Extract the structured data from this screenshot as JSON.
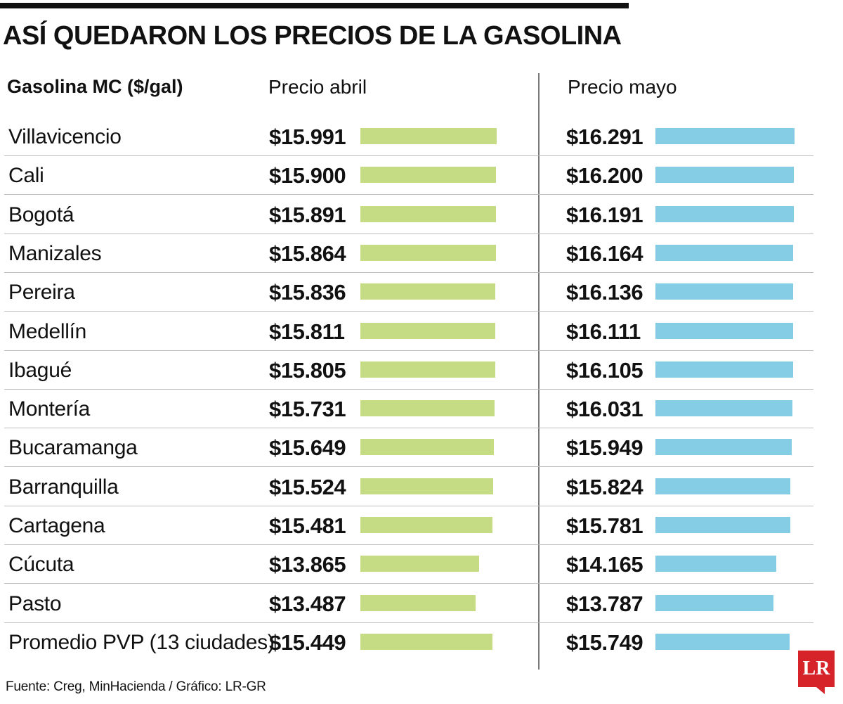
{
  "title": "ASÍ QUEDARON LOS PRECIOS DE LA GASOLINA",
  "footer": "Fuente: Creg, MinHacienda / Gráfico: LR-GR",
  "logo": "LR",
  "colors": {
    "april": "#c5db84",
    "may": "#84cde4"
  },
  "chart_data": {
    "type": "bar",
    "orientation": "horizontal",
    "title": "ASÍ QUEDARON LOS PRECIOS DE LA GASOLINA",
    "row_header": "Gasolina MC ($/gal)",
    "categories": [
      "Villavicencio",
      "Cali",
      "Bogotá",
      "Manizales",
      "Pereira",
      "Medellín",
      "Ibagué",
      "Montería",
      "Bucaramanga",
      "Barranquilla",
      "Cartagena",
      "Cúcuta",
      "Pasto",
      "Promedio PVP (13 ciudades)"
    ],
    "series": [
      {
        "name": "Precio abril",
        "labels": [
          "$15.991",
          "$15.900",
          "$15.891",
          "$15.864",
          "$15.836",
          "$15.811",
          "$15.805",
          "$15.731",
          "$15.649",
          "$15.524",
          "$15.481",
          "$13.865",
          "$13.487",
          "$15.449"
        ],
        "values": [
          15991,
          15900,
          15891,
          15864,
          15836,
          15811,
          15805,
          15731,
          15649,
          15524,
          15481,
          13865,
          13487,
          15449
        ]
      },
      {
        "name": "Precio mayo",
        "labels": [
          "$16.291",
          "$16.200",
          "$16.191",
          "$16.164",
          "$16.136",
          "$16.111",
          "$16.105",
          "$16.031",
          "$15.949",
          "$15.824",
          "$15.781",
          "$14.165",
          "$13.787",
          "$15.749"
        ],
        "values": [
          16291,
          16200,
          16191,
          16164,
          16136,
          16111,
          16105,
          16031,
          15949,
          15824,
          15781,
          14165,
          13787,
          15749
        ]
      }
    ],
    "xlim": [
      0,
      16291
    ],
    "legend": "column-headers"
  }
}
